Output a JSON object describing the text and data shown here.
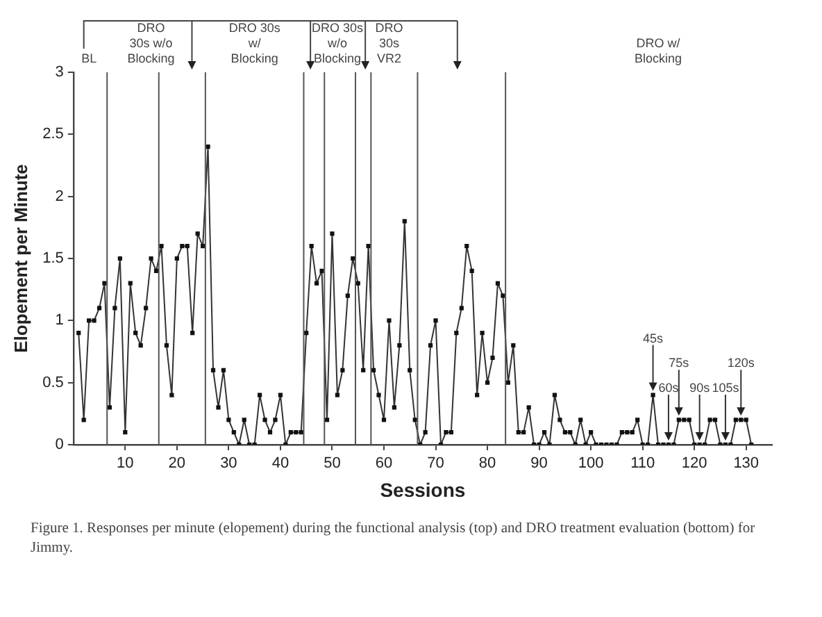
{
  "chart_data": {
    "type": "line",
    "xlabel": "Sessions",
    "ylabel": "Elopement per Minute",
    "x": [
      1,
      2,
      3,
      4,
      5,
      6,
      7,
      8,
      9,
      10,
      11,
      12,
      13,
      14,
      15,
      16,
      17,
      18,
      19,
      20,
      21,
      22,
      23,
      24,
      25,
      26,
      27,
      28,
      29,
      30,
      31,
      32,
      33,
      34,
      35,
      36,
      37,
      38,
      39,
      40,
      41,
      42,
      43,
      44,
      45,
      46,
      47,
      48,
      49,
      50,
      51,
      52,
      53,
      54,
      55,
      56,
      57,
      58,
      59,
      60,
      61,
      62,
      63,
      64,
      65,
      66,
      67,
      68,
      69,
      70,
      71,
      72,
      73,
      74,
      75,
      76,
      77,
      78,
      79,
      80,
      81,
      82,
      83,
      84,
      85,
      86,
      87,
      88,
      89,
      90,
      91,
      92,
      93,
      94,
      95,
      96,
      97,
      98,
      99,
      100,
      101,
      102,
      103,
      104,
      105,
      106,
      107,
      108,
      109,
      110,
      111,
      112,
      113,
      114,
      115,
      116,
      117,
      118,
      119,
      120,
      121,
      122,
      123,
      124,
      125,
      126,
      127,
      128,
      129,
      130,
      131
    ],
    "series": [
      {
        "color": "#333333",
        "values": [
          0.9,
          0.2,
          1,
          1,
          1.1,
          1.3,
          0.3,
          1.1,
          1.5,
          0.1,
          1.3,
          0.9,
          0.8,
          1.1,
          1.5,
          1.4,
          1.6,
          0.8,
          0.4,
          1.5,
          1.6,
          1.6,
          0.9,
          1.7,
          1.6,
          2.4,
          0.6,
          0.3,
          0.6,
          0.2,
          0.1,
          0,
          0.2,
          0,
          0,
          0.4,
          0.2,
          0.1,
          0.2,
          0.4,
          0,
          0.1,
          0.1,
          0.1,
          0.9,
          1.6,
          1.3,
          1.4,
          0.2,
          1.7,
          0.4,
          0.6,
          1.2,
          1.5,
          1.3,
          0.6,
          1.6,
          0.6,
          0.4,
          0.2,
          1,
          0.3,
          0.8,
          1.8,
          0.6,
          0.2,
          0,
          0.1,
          0.8,
          1,
          0,
          0.1,
          0.1,
          0.9,
          1.1,
          1.6,
          1.4,
          0.4,
          0.9,
          0.5,
          0.7,
          1.3,
          1.2,
          0.5,
          0.8,
          0.1,
          0.1,
          0.3,
          0,
          0,
          0.1,
          0,
          0.4,
          0.2,
          0.1,
          0.1,
          0,
          0.2,
          0,
          0.1,
          0,
          0,
          0,
          0,
          0,
          0.1,
          0.1,
          0.1,
          0.2,
          0,
          0,
          0.4,
          0,
          0,
          0,
          0,
          0.2,
          0.2,
          0.2,
          0,
          0,
          0,
          0.2,
          0.2,
          0,
          0,
          0,
          0.2,
          0.2,
          0.2,
          0
        ]
      }
    ],
    "xlim": [
      0,
      135
    ],
    "xticks": [
      10,
      20,
      30,
      40,
      50,
      60,
      70,
      80,
      90,
      100,
      110,
      120,
      130
    ],
    "ylim": [
      0,
      3
    ],
    "yticks": [
      0,
      0.5,
      1,
      1.5,
      2,
      2.5,
      3
    ],
    "marker": "square",
    "line_style": "solid",
    "grid": false,
    "legend": false,
    "ref_lines": [
      {
        "axis": "x",
        "value": 6.5,
        "color": "#555555"
      },
      {
        "axis": "x",
        "value": 16.5,
        "color": "#555555"
      },
      {
        "axis": "x",
        "value": 25.5,
        "color": "#555555"
      },
      {
        "axis": "x",
        "value": 44.5,
        "color": "#555555"
      },
      {
        "axis": "x",
        "value": 48.5,
        "color": "#555555"
      },
      {
        "axis": "x",
        "value": 54.5,
        "color": "#555555"
      },
      {
        "axis": "x",
        "value": 57.5,
        "color": "#555555"
      },
      {
        "axis": "x",
        "value": 66.5,
        "color": "#555555"
      },
      {
        "axis": "x",
        "value": 83.5,
        "color": "#555555"
      }
    ],
    "annotations": [
      "BL",
      "DRO\n30s w/o\nBlocking",
      "DRO 30s\nw/\nBlocking",
      "DRO 30s\nw/o\nBlocking",
      "DRO\n30s\nVR2",
      "DRO w/\nBlocking",
      {
        "text": "45s",
        "x": 112,
        "y": 0.4
      },
      {
        "text": "60s",
        "x": 115,
        "y": 0
      },
      {
        "text": "75s",
        "x": 117,
        "y": 0.2
      },
      {
        "text": "90s",
        "x": 121,
        "y": 0
      },
      {
        "text": "105s",
        "x": 126,
        "y": 0
      },
      {
        "text": "120s",
        "x": 129,
        "y": 0.2
      },
      "Figure 1.   Responses per minute (elopement) during the functional analysis (top) and DRO treatment evaluation (bottom) for Jimmy."
    ]
  }
}
